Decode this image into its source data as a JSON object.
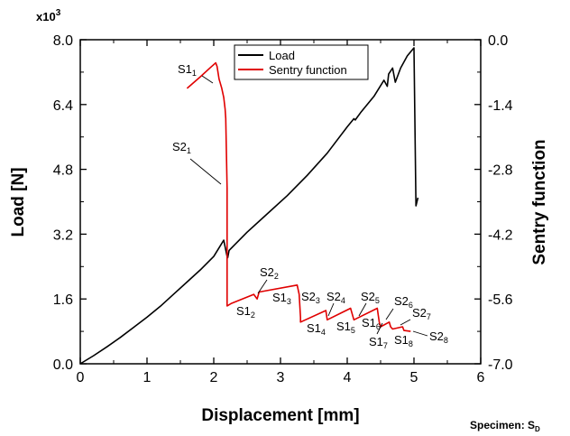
{
  "chart_data": {
    "type": "line",
    "xlabel": "Displacement [mm]",
    "ylabel": "Load [N]",
    "y2label": "Sentry function",
    "xlim": [
      0,
      6
    ],
    "ylim": [
      0,
      8000
    ],
    "y2lim": [
      -7,
      0
    ],
    "xticks": [
      "0",
      "1",
      "2",
      "3",
      "4",
      "5",
      "6"
    ],
    "yticks": [
      "0.0",
      "1.6",
      "3.2",
      "4.8",
      "6.4",
      "8.0"
    ],
    "y2ticks": [
      "0.0",
      "-1.4",
      "-2.8",
      "-4.2",
      "-5.6",
      "-7.0"
    ],
    "y_scale_label": "x10",
    "y_scale_exponent": "3",
    "footer_label": "Specimen: S",
    "footer_subscript": "D",
    "legend": {
      "position": "top-center",
      "load_label": "Load",
      "sentry_label": "Sentry function"
    },
    "series": [
      {
        "name": "Load",
        "axis": "left",
        "color": "#000000",
        "x": [
          0,
          0.2,
          0.4,
          0.6,
          0.8,
          1.0,
          1.2,
          1.4,
          1.6,
          1.8,
          2.0,
          2.15,
          2.2,
          2.21,
          2.23,
          2.5,
          2.8,
          3.1,
          3.4,
          3.7,
          4.0,
          4.1,
          4.12,
          4.2,
          4.4,
          4.55,
          4.6,
          4.62,
          4.68,
          4.72,
          4.8,
          4.9,
          5.0,
          5.03,
          5.06
        ],
        "y": [
          0,
          200,
          420,
          650,
          900,
          1150,
          1420,
          1720,
          2020,
          2320,
          2650,
          3050,
          2650,
          2620,
          2800,
          3250,
          3700,
          4150,
          4650,
          5200,
          5850,
          6050,
          6020,
          6200,
          6600,
          7000,
          6850,
          7150,
          7300,
          6950,
          7300,
          7600,
          7800,
          3900,
          4100
        ]
      },
      {
        "name": "Sentry function",
        "axis": "right",
        "color": "#e00000",
        "x": [
          1.6,
          1.8,
          1.95,
          2.03,
          2.05,
          2.08,
          2.1,
          2.12,
          2.15,
          2.17,
          2.18,
          2.19,
          2.2,
          2.2,
          2.26,
          2.6,
          2.65,
          2.68,
          3.25,
          3.28,
          3.3,
          3.3,
          3.68,
          3.7,
          3.7,
          4.05,
          4.08,
          4.1,
          4.45,
          4.48,
          4.5,
          4.63,
          4.65,
          4.68,
          4.83,
          4.85,
          4.95
        ],
        "y": [
          -1.05,
          -0.8,
          -0.6,
          -0.5,
          -0.58,
          -0.85,
          -0.95,
          -1.05,
          -1.25,
          -1.5,
          -1.7,
          -2.5,
          -3.2,
          -5.75,
          -5.7,
          -5.5,
          -5.6,
          -5.45,
          -5.3,
          -5.5,
          -6.0,
          -6.1,
          -5.85,
          -6.05,
          -6.05,
          -5.8,
          -5.95,
          -6.05,
          -5.8,
          -6.1,
          -6.2,
          -6.1,
          -6.2,
          -6.25,
          -6.2,
          -6.28,
          -6.3
        ]
      }
    ],
    "annotations": [
      {
        "label": "S1",
        "sub": "1"
      },
      {
        "label": "S2",
        "sub": "1"
      },
      {
        "label": "S2",
        "sub": "2"
      },
      {
        "label": "S1",
        "sub": "2"
      },
      {
        "label": "S1",
        "sub": "3"
      },
      {
        "label": "S2",
        "sub": "3"
      },
      {
        "label": "S2",
        "sub": "4"
      },
      {
        "label": "S1",
        "sub": "4"
      },
      {
        "label": "S2",
        "sub": "5"
      },
      {
        "label": "S1",
        "sub": "5"
      },
      {
        "label": "S1",
        "sub": "6"
      },
      {
        "label": "S2",
        "sub": "6"
      },
      {
        "label": "S2",
        "sub": "7"
      },
      {
        "label": "S1",
        "sub": "7"
      },
      {
        "label": "S1",
        "sub": "8"
      },
      {
        "label": "S2",
        "sub": "8"
      }
    ]
  }
}
